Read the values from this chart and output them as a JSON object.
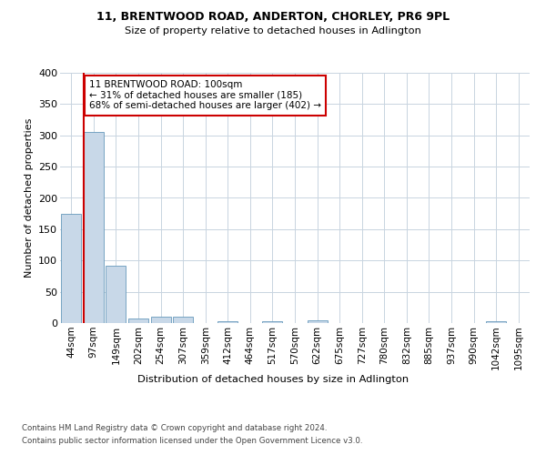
{
  "title1": "11, BRENTWOOD ROAD, ANDERTON, CHORLEY, PR6 9PL",
  "title2": "Size of property relative to detached houses in Adlington",
  "xlabel": "Distribution of detached houses by size in Adlington",
  "ylabel": "Number of detached properties",
  "bins": [
    "44sqm",
    "97sqm",
    "149sqm",
    "202sqm",
    "254sqm",
    "307sqm",
    "359sqm",
    "412sqm",
    "464sqm",
    "517sqm",
    "570sqm",
    "622sqm",
    "675sqm",
    "727sqm",
    "780sqm",
    "832sqm",
    "885sqm",
    "937sqm",
    "990sqm",
    "1042sqm",
    "1095sqm"
  ],
  "values": [
    175,
    305,
    92,
    8,
    10,
    10,
    0,
    3,
    0,
    3,
    0,
    4,
    0,
    0,
    0,
    0,
    0,
    0,
    0,
    3,
    0
  ],
  "bar_color": "#c8d8e8",
  "bar_edge_color": "#6699bb",
  "annotation_line1": "11 BRENTWOOD ROAD: 100sqm",
  "annotation_line2": "← 31% of detached houses are smaller (185)",
  "annotation_line3": "68% of semi-detached houses are larger (402) →",
  "annotation_box_color": "#cc0000",
  "vline_color": "#cc0000",
  "footer1": "Contains HM Land Registry data © Crown copyright and database right 2024.",
  "footer2": "Contains public sector information licensed under the Open Government Licence v3.0.",
  "bg_color": "#ffffff",
  "grid_color": "#c8d4e0",
  "ylim": [
    0,
    400
  ],
  "yticks": [
    0,
    50,
    100,
    150,
    200,
    250,
    300,
    350,
    400
  ]
}
